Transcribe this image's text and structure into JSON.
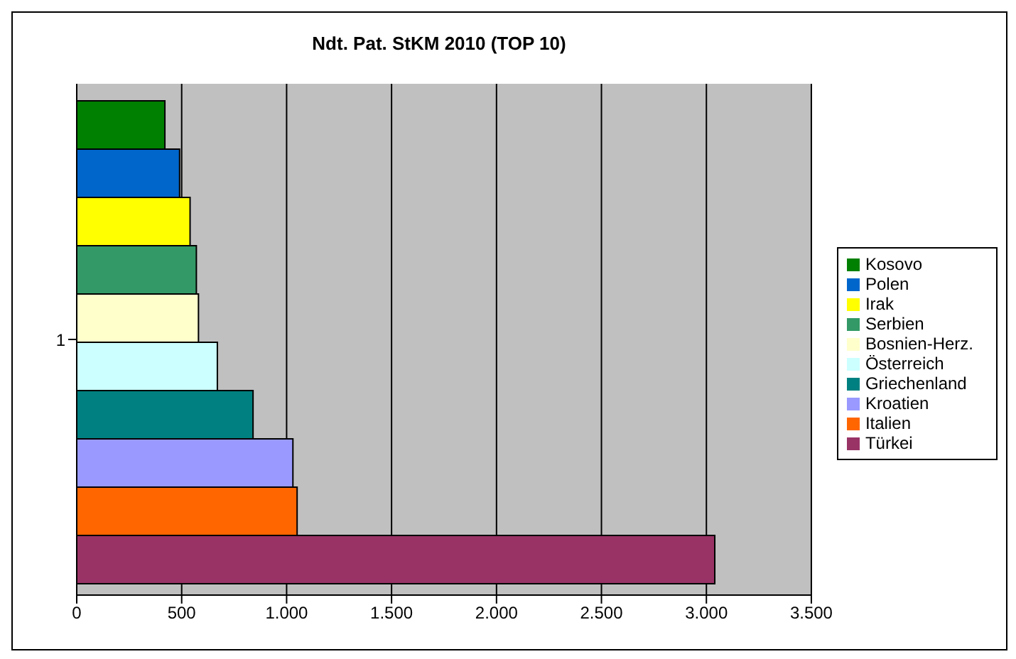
{
  "chart_data": {
    "type": "bar",
    "orientation": "horizontal",
    "title": "Ndt. Pat. StKM 2010 (TOP 10)",
    "categories": [
      "1"
    ],
    "series": [
      {
        "name": "Kosovo",
        "color": "#008000",
        "values": [
          420
        ]
      },
      {
        "name": "Polen",
        "color": "#0066cc",
        "values": [
          490
        ]
      },
      {
        "name": "Irak",
        "color": "#ffff00",
        "values": [
          540
        ]
      },
      {
        "name": "Serbien",
        "color": "#339966",
        "values": [
          570
        ]
      },
      {
        "name": "Bosnien-Herz.",
        "color": "#ffffcc",
        "values": [
          580
        ]
      },
      {
        "name": "Österreich",
        "color": "#ccffff",
        "values": [
          670
        ]
      },
      {
        "name": "Griechenland",
        "color": "#008080",
        "values": [
          840
        ]
      },
      {
        "name": "Kroatien",
        "color": "#9999ff",
        "values": [
          1030
        ]
      },
      {
        "name": "Italien",
        "color": "#ff6600",
        "values": [
          1050
        ]
      },
      {
        "name": "Türkei",
        "color": "#993366",
        "values": [
          3040
        ]
      }
    ],
    "xlim": [
      0,
      3500
    ],
    "xticks": [
      0,
      500,
      {
        "value": 1000,
        "label": "1.000"
      },
      {
        "value": 1500,
        "label": "1.500"
      },
      {
        "value": 2000,
        "label": "2.000"
      },
      {
        "value": 2500,
        "label": "2.500"
      },
      {
        "value": 3000,
        "label": "3.000"
      },
      {
        "value": 3500,
        "label": "3.500"
      }
    ],
    "grid": "x",
    "legend": "right"
  }
}
